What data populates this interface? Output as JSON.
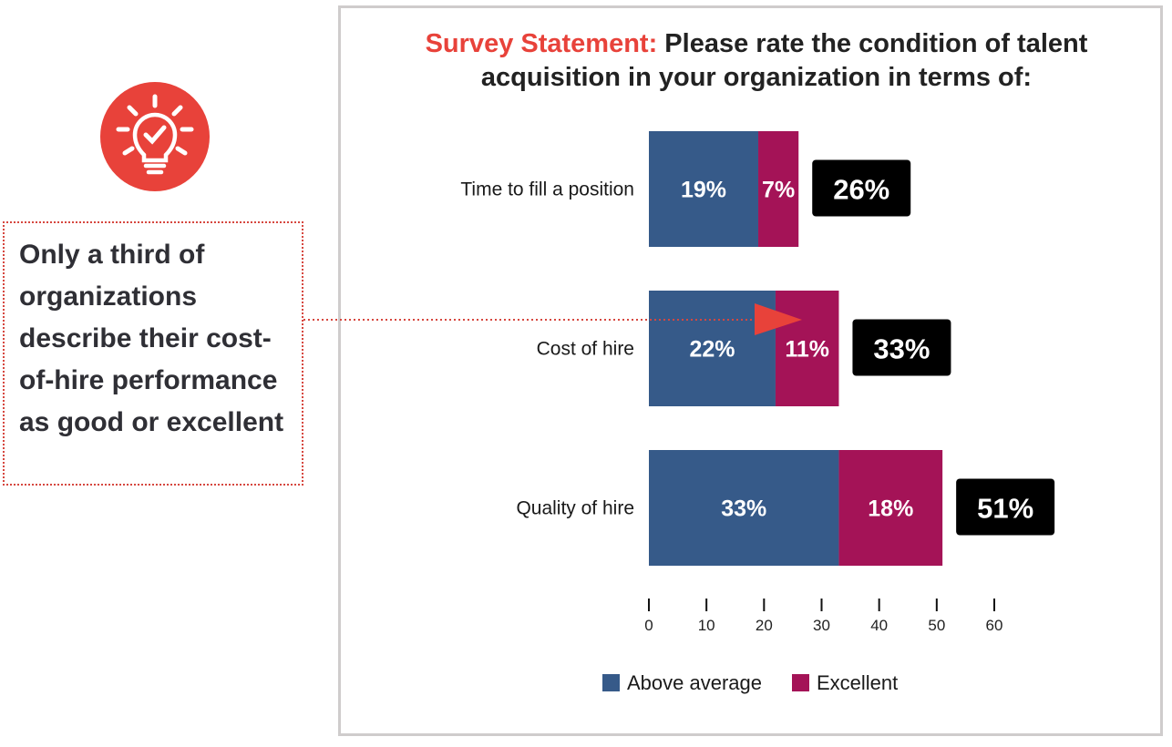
{
  "title": {
    "accent": "Survey Statement:",
    "text": " Please rate the condition of talent acquisition in your organization in terms of:"
  },
  "callout": {
    "text": "Only a third of organizations describe their cost-of-hire performance as good or excellent"
  },
  "icons": {
    "bulb": "lightbulb-check-icon",
    "arrow": "arrow-right-icon"
  },
  "colors": {
    "above_average": "#365a89",
    "excellent": "#a41357",
    "total_box": "#000000",
    "accent": "#e8423a"
  },
  "chart_data": {
    "type": "bar",
    "orientation": "horizontal",
    "stacked": true,
    "title": "Survey Statement: Please rate the condition of talent acquisition in your organization in terms of:",
    "categories": [
      "Time to fill a position",
      "Cost of hire",
      "Quality of hire"
    ],
    "series": [
      {
        "name": "Above average",
        "values": [
          19,
          22,
          33
        ],
        "labels": [
          "19%",
          "22%",
          "33%"
        ]
      },
      {
        "name": "Excellent",
        "values": [
          7,
          11,
          18
        ],
        "labels": [
          "7%",
          "11%",
          "18%"
        ]
      }
    ],
    "totals": [
      "26%",
      "33%",
      "51%"
    ],
    "xlim": [
      0,
      60
    ],
    "xticks": [
      0,
      10,
      20,
      30,
      40,
      50,
      60
    ],
    "xlabel": "",
    "ylabel": "",
    "legend": "bottom-center"
  }
}
